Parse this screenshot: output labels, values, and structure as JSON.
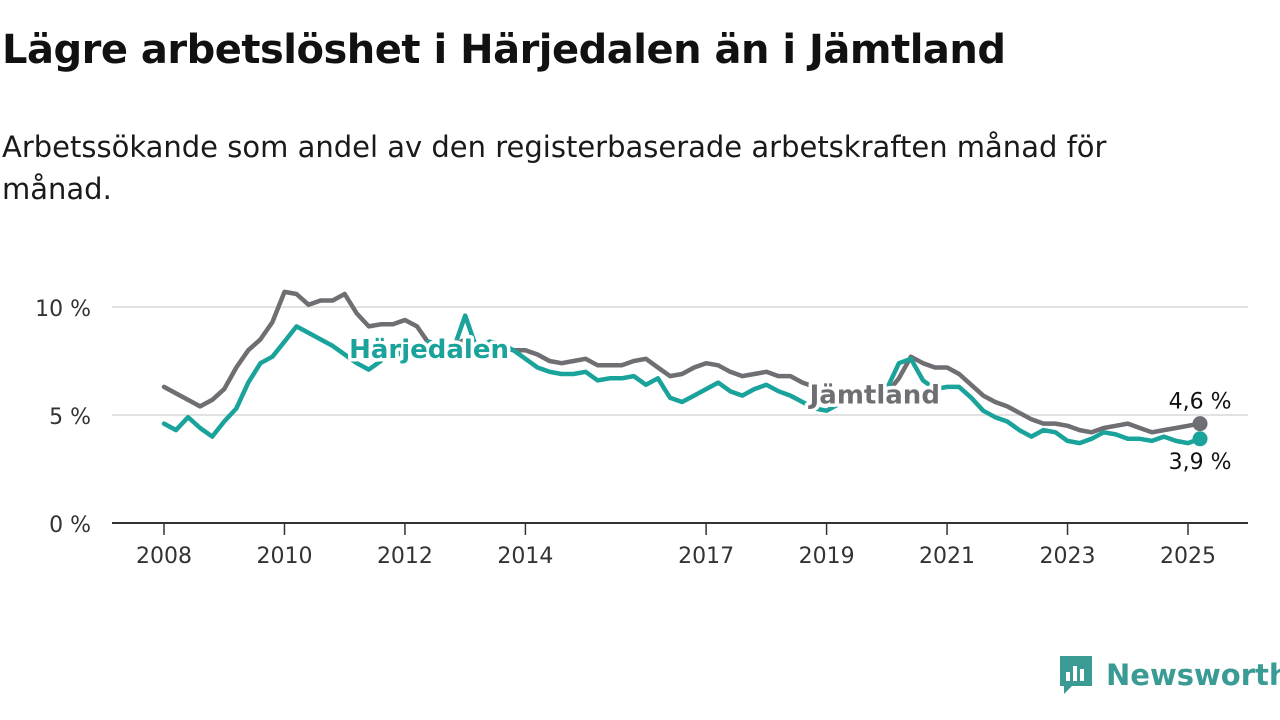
{
  "title": "Lägre arbetslöshet i Härjedalen än i Jämtland",
  "subtitle": "Arbetssökande som andel av den registerbaserade arbetskraften månad för månad.",
  "brand": "Newsworthy",
  "chart_data": {
    "type": "line",
    "title": "Lägre arbetslöshet i Härjedalen än i Jämtland",
    "subtitle": "Arbetssökande som andel av den registerbaserade arbetskraften månad för månad.",
    "xlabel": "",
    "ylabel": "",
    "xlim": [
      2008,
      2025.7
    ],
    "ylim": [
      0,
      11
    ],
    "y_ticks": [
      {
        "value": 0,
        "label": "0 %"
      },
      {
        "value": 5,
        "label": "5 %"
      },
      {
        "value": 10,
        "label": "10 %"
      }
    ],
    "x_ticks": [
      {
        "value": 2008,
        "label": "2008"
      },
      {
        "value": 2010,
        "label": "2010"
      },
      {
        "value": 2012,
        "label": "2012"
      },
      {
        "value": 2014,
        "label": "2014"
      },
      {
        "value": 2017,
        "label": "2017"
      },
      {
        "value": 2019,
        "label": "2019"
      },
      {
        "value": 2021,
        "label": "2021"
      },
      {
        "value": 2023,
        "label": "2023"
      },
      {
        "value": 2025,
        "label": "2025"
      }
    ],
    "grid": "horizontal",
    "series": [
      {
        "name": "Jämtland",
        "color": "#6e6e73",
        "label_at": [
          2019.8,
          6.0
        ],
        "end_label": "4,6 %",
        "x": [
          2008.0,
          2008.2,
          2008.4,
          2008.6,
          2008.8,
          2009.0,
          2009.2,
          2009.4,
          2009.6,
          2009.8,
          2010.0,
          2010.2,
          2010.4,
          2010.6,
          2010.8,
          2011.0,
          2011.2,
          2011.4,
          2011.6,
          2011.8,
          2012.0,
          2012.2,
          2012.4,
          2012.6,
          2012.8,
          2013.0,
          2013.2,
          2013.4,
          2013.6,
          2013.8,
          2014.0,
          2014.2,
          2014.4,
          2014.6,
          2014.8,
          2015.0,
          2015.2,
          2015.4,
          2015.6,
          2015.8,
          2016.0,
          2016.2,
          2016.4,
          2016.6,
          2016.8,
          2017.0,
          2017.2,
          2017.4,
          2017.6,
          2017.8,
          2018.0,
          2018.2,
          2018.4,
          2018.6,
          2018.8,
          2019.0,
          2019.2,
          2019.4,
          2019.6,
          2019.8,
          2020.0,
          2020.2,
          2020.4,
          2020.6,
          2020.8,
          2021.0,
          2021.2,
          2021.4,
          2021.6,
          2021.8,
          2022.0,
          2022.2,
          2022.4,
          2022.6,
          2022.8,
          2023.0,
          2023.2,
          2023.4,
          2023.6,
          2023.8,
          2024.0,
          2024.2,
          2024.4,
          2024.6,
          2024.8,
          2025.0,
          2025.2
        ],
        "y": [
          6.3,
          6.0,
          5.7,
          5.4,
          5.7,
          6.2,
          7.2,
          8.0,
          8.5,
          9.3,
          10.7,
          10.6,
          10.1,
          10.3,
          10.3,
          10.6,
          9.7,
          9.1,
          9.2,
          9.2,
          9.4,
          9.1,
          8.3,
          8.2,
          8.2,
          8.5,
          8.3,
          8.2,
          8.1,
          8.0,
          8.0,
          7.8,
          7.5,
          7.4,
          7.5,
          7.6,
          7.3,
          7.3,
          7.3,
          7.5,
          7.6,
          7.2,
          6.8,
          6.9,
          7.2,
          7.4,
          7.3,
          7.0,
          6.8,
          6.9,
          7.0,
          6.8,
          6.8,
          6.5,
          6.3,
          6.1,
          5.9,
          5.9,
          5.8,
          5.8,
          6.0,
          6.7,
          7.7,
          7.4,
          7.2,
          7.2,
          6.9,
          6.4,
          5.9,
          5.6,
          5.4,
          5.1,
          4.8,
          4.6,
          4.6,
          4.5,
          4.3,
          4.2,
          4.4,
          4.5,
          4.6,
          4.4,
          4.2,
          4.3,
          4.4,
          4.5,
          4.6
        ]
      },
      {
        "name": "Härjedalen",
        "color": "#1aa39a",
        "label_at": [
          2012.4,
          8.1
        ],
        "end_label": "3,9 %",
        "x": [
          2008.0,
          2008.2,
          2008.4,
          2008.6,
          2008.8,
          2009.0,
          2009.2,
          2009.4,
          2009.6,
          2009.8,
          2010.0,
          2010.2,
          2010.4,
          2010.6,
          2010.8,
          2011.0,
          2011.2,
          2011.4,
          2011.6,
          2011.8,
          2012.0,
          2012.2,
          2012.4,
          2012.6,
          2012.8,
          2013.0,
          2013.2,
          2013.4,
          2013.6,
          2013.8,
          2014.0,
          2014.2,
          2014.4,
          2014.6,
          2014.8,
          2015.0,
          2015.2,
          2015.4,
          2015.6,
          2015.8,
          2016.0,
          2016.2,
          2016.4,
          2016.6,
          2016.8,
          2017.0,
          2017.2,
          2017.4,
          2017.6,
          2017.8,
          2018.0,
          2018.2,
          2018.4,
          2018.6,
          2018.8,
          2019.0,
          2019.2,
          2019.4,
          2019.6,
          2019.8,
          2020.0,
          2020.2,
          2020.4,
          2020.6,
          2020.8,
          2021.0,
          2021.2,
          2021.4,
          2021.6,
          2021.8,
          2022.0,
          2022.2,
          2022.4,
          2022.6,
          2022.8,
          2023.0,
          2023.2,
          2023.4,
          2023.6,
          2023.8,
          2024.0,
          2024.2,
          2024.4,
          2024.6,
          2024.8,
          2025.0,
          2025.2
        ],
        "y": [
          4.6,
          4.3,
          4.9,
          4.4,
          4.0,
          4.7,
          5.3,
          6.5,
          7.4,
          7.7,
          8.4,
          9.1,
          8.8,
          8.5,
          8.2,
          7.8,
          7.4,
          7.1,
          7.5,
          8.2,
          7.6,
          8.0,
          8.4,
          8.2,
          8.0,
          9.6,
          8.0,
          8.4,
          8.3,
          8.0,
          7.6,
          7.2,
          7.0,
          6.9,
          6.9,
          7.0,
          6.6,
          6.7,
          6.7,
          6.8,
          6.4,
          6.7,
          5.8,
          5.6,
          5.9,
          6.2,
          6.5,
          6.1,
          5.9,
          6.2,
          6.4,
          6.1,
          5.9,
          5.6,
          5.3,
          5.2,
          5.5,
          5.7,
          5.8,
          5.9,
          6.2,
          7.4,
          7.6,
          6.6,
          6.2,
          6.3,
          6.3,
          5.8,
          5.2,
          4.9,
          4.7,
          4.3,
          4.0,
          4.3,
          4.2,
          3.8,
          3.7,
          3.9,
          4.2,
          4.1,
          3.9,
          3.9,
          3.8,
          4.0,
          3.8,
          3.7,
          3.9
        ]
      }
    ]
  }
}
